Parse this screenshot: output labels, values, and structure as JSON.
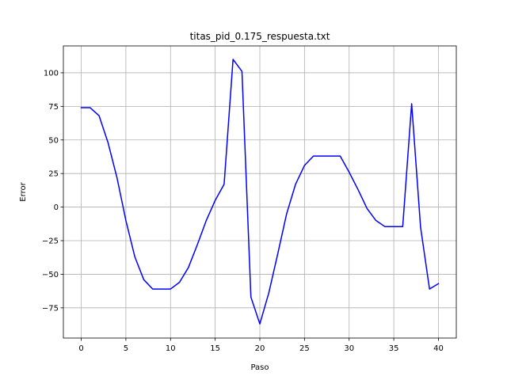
{
  "chart_data": {
    "type": "line",
    "title": "titas_pid_0.175_respuesta.txt",
    "xlabel": "Paso",
    "ylabel": "Error",
    "xlim": [
      -2,
      42
    ],
    "ylim": [
      -97.5,
      120
    ],
    "xticks": [
      0,
      5,
      10,
      15,
      20,
      25,
      30,
      35,
      40
    ],
    "yticks": [
      -75,
      -50,
      -25,
      0,
      25,
      50,
      75,
      100
    ],
    "grid": true,
    "series": [
      {
        "color": "#0000ff",
        "x": [
          0,
          1,
          2,
          3,
          4,
          5,
          6,
          7,
          8,
          9,
          10,
          11,
          12,
          13,
          14,
          15,
          16,
          17,
          18,
          19,
          20,
          21,
          22,
          23,
          24,
          25,
          26,
          27,
          28,
          29,
          30,
          31,
          32,
          33,
          34,
          35,
          36,
          37,
          38,
          39,
          40
        ],
        "y": [
          74,
          74,
          68,
          48,
          22,
          -10,
          -37,
          -54,
          -61,
          -61,
          -61,
          -56,
          -45,
          -28,
          -10,
          5,
          17,
          110,
          101,
          -67,
          -87,
          -64,
          -35,
          -5,
          17,
          31,
          38,
          38,
          38,
          38,
          26,
          13,
          -1,
          -10,
          -14.5,
          -14.5,
          -14.5,
          77,
          -15,
          -61,
          -57
        ]
      }
    ]
  }
}
